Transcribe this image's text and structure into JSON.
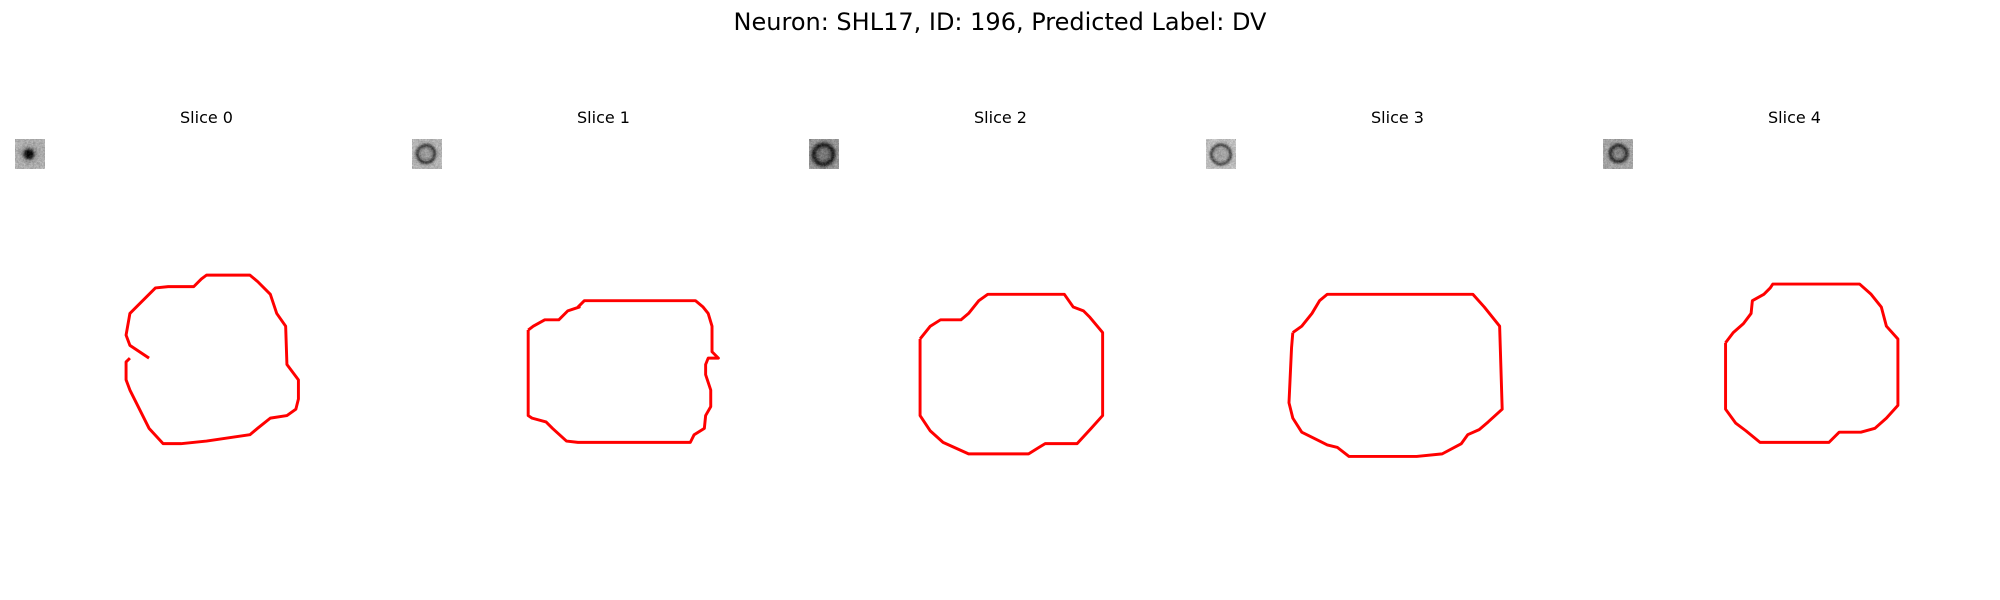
{
  "figure": {
    "title": "Neuron: SHL17, ID: 196, Predicted Label: DV"
  },
  "colors": {
    "contour": "#ff0000",
    "background": "#ffffff",
    "colormap": "grayscale"
  },
  "slices": [
    {
      "label": "Slice 0"
    },
    {
      "label": "Slice 1"
    },
    {
      "label": "Slice 2"
    },
    {
      "label": "Slice 3"
    },
    {
      "label": "Slice 4"
    }
  ]
}
